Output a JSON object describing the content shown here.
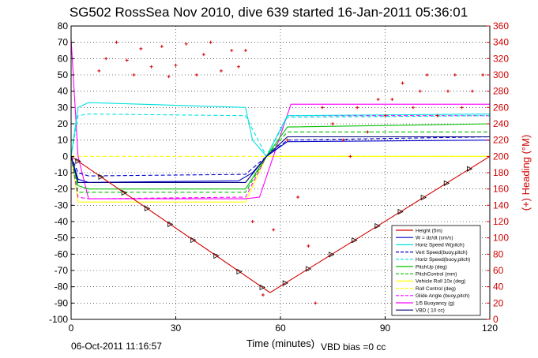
{
  "chart_data": {
    "type": "line",
    "title": "SG502 RossSea Nov 2010, dive 639 started 16-Jan-2011 05:36:01",
    "xlabel": "Time (minutes)",
    "ylabel_right": "(+) Heading (°M)",
    "footer_left": "06-Oct-2011 11:16:57",
    "footer_right": "VBD bias =0 cc",
    "xlim": [
      0,
      120
    ],
    "ylim": [
      -100,
      80
    ],
    "ylim_right": [
      0,
      360
    ],
    "x_ticks": [
      "0",
      "30",
      "60",
      "90",
      "120"
    ],
    "x_tick_values": [
      0,
      30,
      60,
      90,
      120
    ],
    "y_ticks": [
      "-100",
      "-90",
      "-80",
      "-70",
      "-60",
      "-50",
      "-40",
      "-30",
      "-20",
      "-10",
      "0",
      "10",
      "20",
      "30",
      "40",
      "50",
      "60",
      "70",
      "80"
    ],
    "y_tick_values": [
      -100,
      -90,
      -80,
      -70,
      -60,
      -50,
      -40,
      -30,
      -20,
      -10,
      0,
      10,
      20,
      30,
      40,
      50,
      60,
      70,
      80
    ],
    "y_ticks_right": [
      "0",
      "20",
      "40",
      "60",
      "80",
      "100",
      "120",
      "140",
      "160",
      "180",
      "200",
      "220",
      "240",
      "260",
      "280",
      "300",
      "320",
      "340",
      "360"
    ],
    "y_tick_values_right": [
      0,
      20,
      40,
      60,
      80,
      100,
      120,
      140,
      160,
      180,
      200,
      220,
      240,
      260,
      280,
      300,
      320,
      340,
      360
    ],
    "grid": true,
    "legend_position": "bottom-right",
    "series": [
      {
        "name": "Height (5m)",
        "color": "#d00000",
        "style": "solid",
        "x": [
          0,
          57,
          120
        ],
        "y": [
          0,
          -83.6,
          0
        ]
      },
      {
        "name": "W = dz/dt (cm/s)",
        "color": "#0000cc",
        "style": "solid",
        "x": [
          0,
          2,
          5,
          48,
          52,
          56,
          62,
          120
        ],
        "y": [
          0,
          -14,
          -16,
          -15,
          -10,
          0,
          9,
          10
        ]
      },
      {
        "name": "Horiz Speed W(pitch)",
        "color": "#00e0e0",
        "style": "solid",
        "x": [
          0,
          2,
          5,
          50,
          52,
          56,
          62,
          120
        ],
        "y": [
          0,
          30,
          33,
          30,
          10,
          0,
          25,
          26
        ]
      },
      {
        "name": "Vert Speed(buoy,pitch)",
        "color": "#0000cc",
        "style": "dashed",
        "x": [
          0,
          2,
          5,
          50,
          56,
          62,
          120
        ],
        "y": [
          0,
          -10,
          -12,
          -11,
          0,
          10,
          12
        ]
      },
      {
        "name": "Horiz Speed(buoy,pitch)",
        "color": "#00e0e0",
        "style": "dashed",
        "x": [
          0,
          2,
          5,
          50,
          56,
          62,
          120
        ],
        "y": [
          0,
          25,
          26,
          25,
          0,
          24,
          25
        ]
      },
      {
        "name": "PitchUp (deg)",
        "color": "#00c000",
        "style": "solid",
        "x": [
          0,
          2,
          5,
          50,
          56,
          62,
          120
        ],
        "y": [
          0,
          -18,
          -20,
          -20,
          0,
          18,
          20
        ]
      },
      {
        "name": "PitchControl (mm)",
        "color": "#00c000",
        "style": "dashed",
        "x": [
          0,
          2,
          5,
          50,
          56,
          62,
          120
        ],
        "y": [
          0,
          -22,
          -22,
          -22,
          0,
          15,
          15
        ]
      },
      {
        "name": "Vehicle Roll 10x (deg)",
        "color": "#ffff00",
        "style": "solid",
        "x": [
          0,
          2,
          5,
          50,
          56,
          62,
          120
        ],
        "y": [
          0,
          -28,
          -28,
          -28,
          0,
          0,
          0
        ]
      },
      {
        "name": "Roll Control (deg)",
        "color": "#ffff00",
        "style": "dashed",
        "x": [
          0,
          120
        ],
        "y": [
          0,
          0
        ]
      },
      {
        "name": "Glide Angle (buoy,pitch)",
        "color": "#ff00ff",
        "style": "dashed",
        "x": [
          0,
          2,
          5,
          50,
          56,
          62,
          120
        ],
        "y": [
          0,
          -25,
          -26,
          -25,
          0,
          25,
          25
        ]
      },
      {
        "name": "1/5 Buoyancy (g)",
        "color": "#ff00ff",
        "style": "solid",
        "x": [
          0,
          2,
          5,
          50,
          54,
          63,
          120
        ],
        "y": [
          72,
          0,
          -26,
          -26,
          -25,
          32,
          32
        ]
      },
      {
        "name": "VBD ( 10 cc)",
        "color": "#000080",
        "style": "solid",
        "x": [
          0,
          2,
          5,
          50,
          56,
          62,
          120
        ],
        "y": [
          0,
          -16,
          -16,
          -16,
          0,
          12,
          12
        ]
      }
    ],
    "heading": {
      "name": "Heading",
      "color": "#d00000",
      "marker": "+",
      "axis": "right",
      "x": [
        8,
        10,
        13,
        16,
        18,
        20,
        23,
        26,
        28,
        30,
        33,
        36,
        38,
        40,
        43,
        46,
        48,
        50,
        52,
        55,
        58,
        62,
        65,
        68,
        70,
        72,
        75,
        78,
        80,
        82,
        85,
        88,
        90,
        92,
        95,
        98,
        100,
        102,
        105,
        108,
        110,
        112,
        115,
        118
      ],
      "y": [
        305,
        320,
        340,
        318,
        300,
        332,
        310,
        335,
        298,
        312,
        338,
        300,
        325,
        340,
        305,
        330,
        310,
        330,
        120,
        30,
        110,
        220,
        150,
        90,
        20,
        260,
        240,
        220,
        200,
        260,
        230,
        270,
        250,
        270,
        290,
        260,
        280,
        300,
        250,
        280,
        300,
        260,
        280,
        300
      ]
    }
  }
}
